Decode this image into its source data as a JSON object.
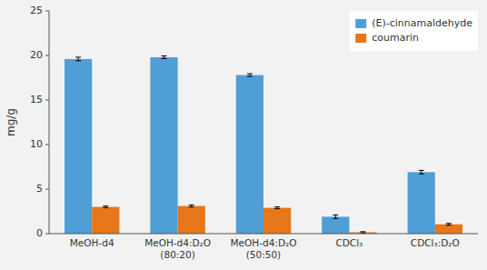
{
  "chart_data": {
    "type": "bar",
    "categories": [
      "MeOH-d4",
      "MeOH-d4:D₂O\n(80:20)",
      "MeOH-d4:D₂O\n(50:50)",
      "CDCl₃",
      "CDCl₃:D₂O"
    ],
    "series": [
      {
        "name": "(E)-cinnamaldehyde",
        "color": "#4F9FD6",
        "values": [
          19.6,
          19.8,
          17.8,
          1.9,
          6.9
        ],
        "errors": [
          0.2,
          0.15,
          0.15,
          0.2,
          0.2
        ]
      },
      {
        "name": "coumarin",
        "color": "#E8761A",
        "values": [
          3.0,
          3.1,
          2.9,
          0.15,
          1.05
        ],
        "errors": [
          0.1,
          0.12,
          0.1,
          0.07,
          0.1
        ]
      }
    ],
    "y_label": "mg/g",
    "ylim": [
      0,
      25
    ],
    "yticks": [
      0,
      5,
      10,
      15,
      20,
      25
    ],
    "legend": "upper-right"
  }
}
